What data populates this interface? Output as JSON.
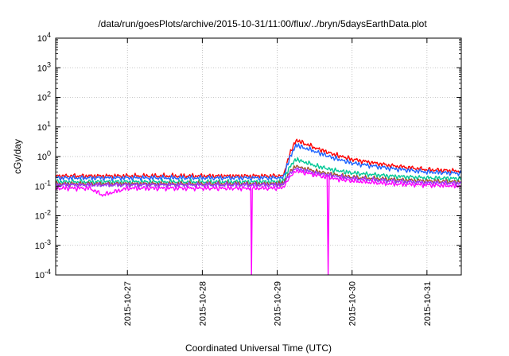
{
  "chart_data": {
    "type": "line",
    "title": "/data/run/goesPlots/archive/2015-10-31/11:00/flux/../bryn/5daysEarthData.plot",
    "xlabel": "Coordinated Universal Time (UTC)",
    "ylabel": "cGy/day",
    "x_scale": "time",
    "y_scale": "log",
    "xlim": [
      "2015-10-26T01:00",
      "2015-10-31T11:00"
    ],
    "ylim": [
      0.0001,
      10000
    ],
    "y_ticks": [
      {
        "value": 0.0001,
        "base": "10",
        "exp": "-4"
      },
      {
        "value": 0.001,
        "base": "10",
        "exp": "-3"
      },
      {
        "value": 0.01,
        "base": "10",
        "exp": "-2"
      },
      {
        "value": 0.1,
        "base": "10",
        "exp": "-1"
      },
      {
        "value": 1,
        "base": "10",
        "exp": "0"
      },
      {
        "value": 10,
        "base": "10",
        "exp": "1"
      },
      {
        "value": 100,
        "base": "10",
        "exp": "2"
      },
      {
        "value": 1000,
        "base": "10",
        "exp": "3"
      },
      {
        "value": 10000,
        "base": "10",
        "exp": "4"
      }
    ],
    "x_ticks": [
      {
        "value": "2015-10-27",
        "label": "2015-10-27"
      },
      {
        "value": "2015-10-28",
        "label": "2015-10-28"
      },
      {
        "value": "2015-10-29",
        "label": "2015-10-29"
      },
      {
        "value": "2015-10-30",
        "label": "2015-10-30"
      },
      {
        "value": "2015-10-31",
        "label": "2015-10-31"
      }
    ],
    "grid": true,
    "series": [
      {
        "color": "#ff0000",
        "x": [
          "2015-10-26T01:00",
          "2015-10-26T12:00",
          "2015-10-27T00:00",
          "2015-10-27T12:00",
          "2015-10-28T00:00",
          "2015-10-28T12:00",
          "2015-10-29T00:00",
          "2015-10-29T02:00",
          "2015-10-29T04:00",
          "2015-10-29T06:00",
          "2015-10-29T08:00",
          "2015-10-29T12:00",
          "2015-10-29T18:00",
          "2015-10-30T00:00",
          "2015-10-30T12:00",
          "2015-10-31T00:00",
          "2015-10-31T11:00"
        ],
        "y": [
          0.22,
          0.22,
          0.22,
          0.22,
          0.22,
          0.22,
          0.22,
          0.23,
          1.2,
          3.5,
          3.0,
          2.0,
          1.2,
          0.8,
          0.5,
          0.36,
          0.32
        ]
      },
      {
        "color": "#1e64ff",
        "x": [
          "2015-10-26T01:00",
          "2015-10-26T12:00",
          "2015-10-27T00:00",
          "2015-10-27T12:00",
          "2015-10-28T00:00",
          "2015-10-28T12:00",
          "2015-10-29T00:00",
          "2015-10-29T02:00",
          "2015-10-29T04:00",
          "2015-10-29T06:00",
          "2015-10-29T08:00",
          "2015-10-29T12:00",
          "2015-10-29T18:00",
          "2015-10-30T00:00",
          "2015-10-30T12:00",
          "2015-10-31T00:00",
          "2015-10-31T11:00"
        ],
        "y": [
          0.19,
          0.19,
          0.19,
          0.19,
          0.19,
          0.19,
          0.19,
          0.2,
          0.9,
          2.4,
          2.1,
          1.5,
          0.9,
          0.6,
          0.4,
          0.3,
          0.27
        ]
      },
      {
        "color": "#00c896",
        "x": [
          "2015-10-26T01:00",
          "2015-10-26T12:00",
          "2015-10-27T00:00",
          "2015-10-27T12:00",
          "2015-10-28T00:00",
          "2015-10-28T12:00",
          "2015-10-29T00:00",
          "2015-10-29T02:00",
          "2015-10-29T04:00",
          "2015-10-29T06:00",
          "2015-10-29T08:00",
          "2015-10-29T12:00",
          "2015-10-29T18:00",
          "2015-10-30T00:00",
          "2015-10-30T12:00",
          "2015-10-31T00:00",
          "2015-10-31T11:00"
        ],
        "y": [
          0.14,
          0.14,
          0.14,
          0.14,
          0.14,
          0.14,
          0.14,
          0.15,
          0.45,
          0.8,
          0.7,
          0.5,
          0.35,
          0.28,
          0.22,
          0.19,
          0.18
        ]
      },
      {
        "color": "#a0522d",
        "x": [
          "2015-10-26T01:00",
          "2015-10-26T12:00",
          "2015-10-27T00:00",
          "2015-10-27T12:00",
          "2015-10-28T00:00",
          "2015-10-28T12:00",
          "2015-10-29T00:00",
          "2015-10-29T02:00",
          "2015-10-29T04:00",
          "2015-10-29T06:00",
          "2015-10-29T08:00",
          "2015-10-29T12:00",
          "2015-10-29T18:00",
          "2015-10-30T00:00",
          "2015-10-30T12:00",
          "2015-10-31T00:00",
          "2015-10-31T11:00"
        ],
        "y": [
          0.12,
          0.12,
          0.12,
          0.12,
          0.12,
          0.12,
          0.12,
          0.125,
          0.3,
          0.48,
          0.42,
          0.32,
          0.25,
          0.2,
          0.17,
          0.15,
          0.14
        ]
      },
      {
        "color": "#9b30ff",
        "x": [
          "2015-10-26T01:00",
          "2015-10-26T12:00",
          "2015-10-27T00:00",
          "2015-10-27T12:00",
          "2015-10-28T00:00",
          "2015-10-28T12:00",
          "2015-10-29T00:00",
          "2015-10-29T02:00",
          "2015-10-29T04:00",
          "2015-10-29T06:00",
          "2015-10-29T08:00",
          "2015-10-29T12:00",
          "2015-10-29T18:00",
          "2015-10-30T00:00",
          "2015-10-30T12:00",
          "2015-10-31T00:00",
          "2015-10-31T11:00"
        ],
        "y": [
          0.11,
          0.11,
          0.11,
          0.11,
          0.11,
          0.11,
          0.11,
          0.115,
          0.26,
          0.4,
          0.35,
          0.28,
          0.22,
          0.18,
          0.15,
          0.13,
          0.125
        ]
      },
      {
        "color": "#ff00ff",
        "x": [
          "2015-10-26T01:00",
          "2015-10-26T12:00",
          "2015-10-26T16:00",
          "2015-10-27T00:00",
          "2015-10-27T12:00",
          "2015-10-28T00:00",
          "2015-10-28T15:30",
          "2015-10-28T15:45",
          "2015-10-28T16:00",
          "2015-10-29T00:00",
          "2015-10-29T02:00",
          "2015-10-29T04:00",
          "2015-10-29T06:00",
          "2015-10-29T08:00",
          "2015-10-29T12:00",
          "2015-10-29T16:00",
          "2015-10-29T16:20",
          "2015-10-29T16:40",
          "2015-10-29T18:00",
          "2015-10-30T00:00",
          "2015-10-30T12:00",
          "2015-10-31T00:00",
          "2015-10-31T11:00"
        ],
        "y": [
          0.085,
          0.085,
          0.05,
          0.085,
          0.085,
          0.085,
          0.085,
          0.0001,
          0.085,
          0.085,
          0.09,
          0.2,
          0.33,
          0.3,
          0.24,
          0.2,
          0.0001,
          0.2,
          0.18,
          0.15,
          0.12,
          0.11,
          0.1
        ]
      }
    ]
  }
}
